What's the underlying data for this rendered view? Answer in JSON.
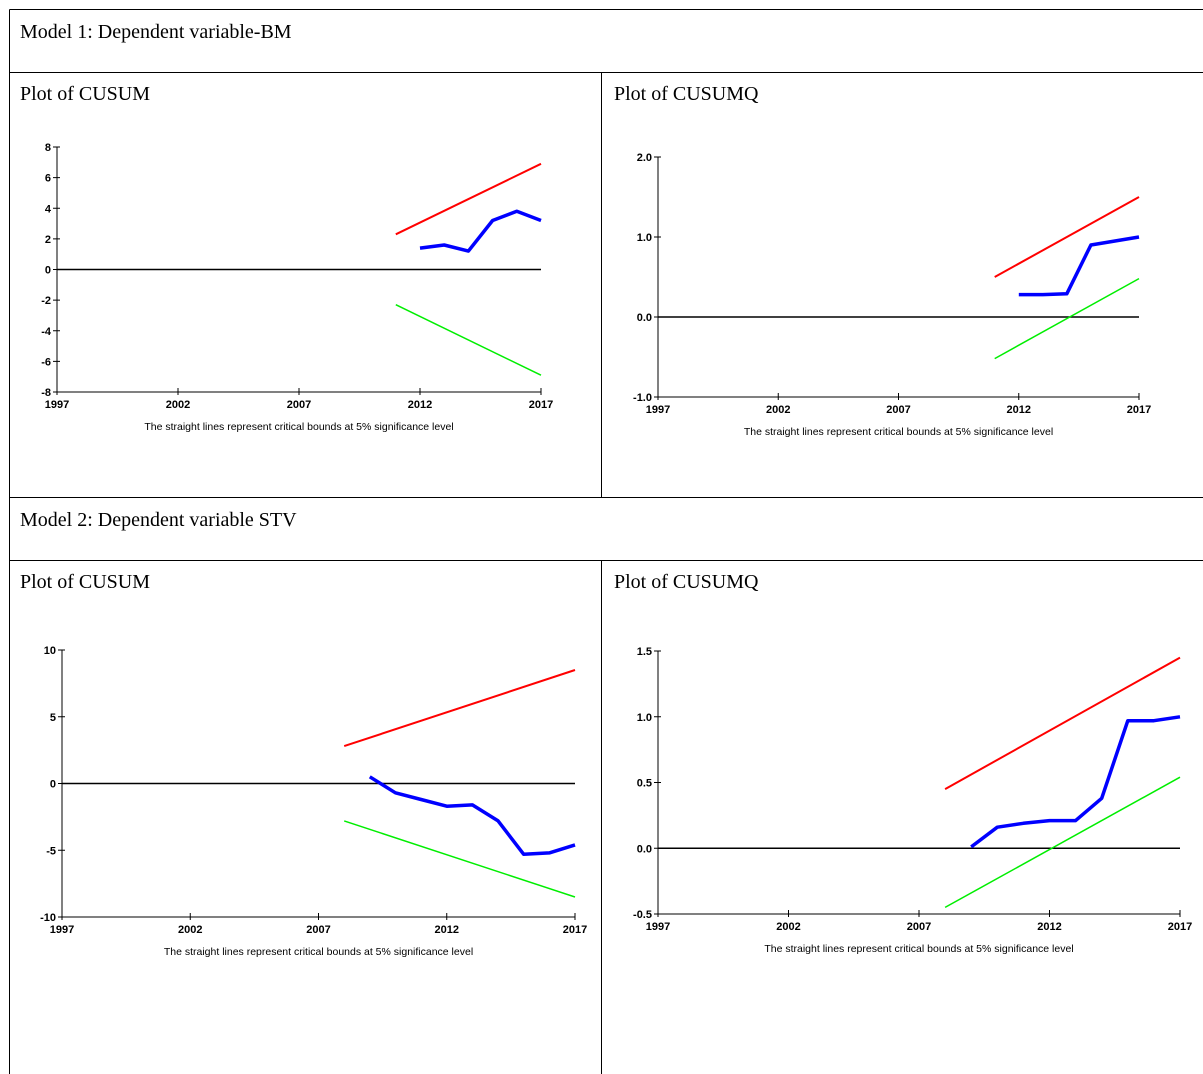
{
  "headings": [
    "Model 1: Dependent variable-BM",
    "Model 2: Dependent variable STV"
  ],
  "chart_data": [
    {
      "type": "line",
      "title": "Plot of CUSUM",
      "caption": "The straight lines represent critical bounds at 5% significance level",
      "xlim": [
        1997,
        2017
      ],
      "xticks": [
        1997,
        2002,
        2007,
        2012,
        2017
      ],
      "ylim": [
        -8,
        8
      ],
      "yticks": [
        -8,
        -6,
        -4,
        -2,
        0,
        2,
        4,
        6,
        8
      ],
      "reference_line": 0,
      "series": [
        {
          "color": "#ff0000",
          "x": [
            2011,
            2017
          ],
          "values": [
            2.3,
            6.9
          ]
        },
        {
          "color": "#00ee00",
          "x": [
            2011,
            2017
          ],
          "values": [
            -2.3,
            -6.9
          ]
        },
        {
          "color": "#0000ff",
          "x": [
            2012,
            2013,
            2014,
            2015,
            2016,
            2017
          ],
          "values": [
            1.4,
            1.6,
            1.2,
            3.2,
            3.8,
            3.2
          ]
        }
      ]
    },
    {
      "type": "line",
      "title": "Plot of CUSUMQ",
      "caption": "The straight lines represent critical bounds at 5% significance level",
      "xlim": [
        1997,
        2017
      ],
      "xticks": [
        1997,
        2002,
        2007,
        2012,
        2017
      ],
      "ylim": [
        -1,
        2
      ],
      "yticks": [
        {
          "value": -1,
          "label": "-1.0"
        },
        {
          "value": 0,
          "label": "0.0"
        },
        {
          "value": 1,
          "label": "1.0"
        },
        {
          "value": 2,
          "label": "2.0"
        }
      ],
      "reference_line": 0,
      "series": [
        {
          "color": "#ff0000",
          "x": [
            2011,
            2017
          ],
          "values": [
            0.5,
            1.5
          ]
        },
        {
          "color": "#00ee00",
          "x": [
            2011,
            2017
          ],
          "values": [
            -0.52,
            0.48
          ]
        },
        {
          "color": "#0000ff",
          "x": [
            2012,
            2013,
            2014,
            2015,
            2016,
            2017
          ],
          "values": [
            0.28,
            0.28,
            0.29,
            0.9,
            0.95,
            1.0
          ]
        }
      ]
    },
    {
      "type": "line",
      "title": "Plot of CUSUM",
      "caption": "The straight lines represent critical bounds at 5% significance level",
      "xlim": [
        1997,
        2017
      ],
      "xticks": [
        1997,
        2002,
        2007,
        2012,
        2017
      ],
      "ylim": [
        -10,
        10
      ],
      "yticks": [
        -10,
        -5,
        0,
        5,
        10
      ],
      "reference_line": 0,
      "series": [
        {
          "color": "#ff0000",
          "x": [
            2008,
            2017
          ],
          "values": [
            2.8,
            8.5
          ]
        },
        {
          "color": "#00ee00",
          "x": [
            2008,
            2017
          ],
          "values": [
            -2.8,
            -8.5
          ]
        },
        {
          "color": "#0000ff",
          "x": [
            2009,
            2010,
            2011,
            2012,
            2013,
            2014,
            2015,
            2016,
            2017
          ],
          "values": [
            0.5,
            -0.7,
            -1.2,
            -1.7,
            -1.6,
            -2.8,
            -5.3,
            -5.2,
            -4.6
          ]
        }
      ]
    },
    {
      "type": "line",
      "title": "Plot of CUSUMQ",
      "caption": "The straight lines represent critical bounds at 5% significance level",
      "xlim": [
        1997,
        2017
      ],
      "xticks": [
        1997,
        2002,
        2007,
        2012,
        2017
      ],
      "ylim": [
        -0.5,
        1.5
      ],
      "yticks": [
        -0.5,
        {
          "value": 0,
          "label": "0.0"
        },
        0.5,
        {
          "value": 1,
          "label": "1.0"
        },
        1.5
      ],
      "reference_line": 0,
      "series": [
        {
          "color": "#ff0000",
          "x": [
            2008,
            2017
          ],
          "values": [
            0.45,
            1.45
          ]
        },
        {
          "color": "#00ee00",
          "x": [
            2008,
            2017
          ],
          "values": [
            -0.45,
            0.54
          ]
        },
        {
          "color": "#0000ff",
          "x": [
            2009,
            2010,
            2011,
            2012,
            2013,
            2014,
            2015,
            2016,
            2017
          ],
          "values": [
            0.01,
            0.16,
            0.19,
            0.21,
            0.21,
            0.38,
            0.97,
            0.97,
            1.0
          ]
        }
      ]
    }
  ]
}
